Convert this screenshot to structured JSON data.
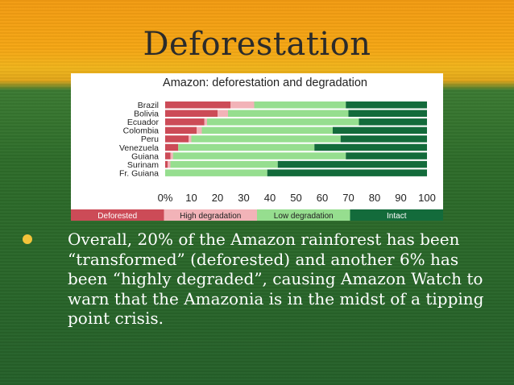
{
  "slide": {
    "title": "Deforestation",
    "bullets": [
      "Overall, 20% of the Amazon rainforest has been “transformed” (deforested) and another 6% has been “highly degraded”, causing Amazon Watch to warn that the Amazonia is in the midst of a tipping point crisis."
    ]
  },
  "chart_data": {
    "type": "bar",
    "orientation": "horizontal",
    "stacked": true,
    "title": "Amazon: deforestation and degradation",
    "categories": [
      "Brazil",
      "Bolivia",
      "Ecuador",
      "Colombia",
      "Peru",
      "Venezuela",
      "Guiana",
      "Surinam",
      "Fr. Guiana"
    ],
    "series": [
      {
        "name": "Deforested",
        "color": "#cc4b57",
        "values": [
          25,
          20,
          15,
          12,
          9,
          5,
          2,
          1,
          0
        ]
      },
      {
        "name": "High degradation",
        "color": "#f2b3b8",
        "values": [
          9,
          4,
          1,
          2,
          1,
          0,
          1,
          1,
          0
        ]
      },
      {
        "name": "Low degradation",
        "color": "#96de8f",
        "values": [
          35,
          46,
          58,
          50,
          57,
          52,
          66,
          41,
          39
        ]
      },
      {
        "name": "Intact",
        "color": "#136b3b",
        "values": [
          31,
          30,
          26,
          36,
          33,
          43,
          31,
          57,
          61
        ]
      }
    ],
    "xlim": [
      0,
      100
    ],
    "xticks": [
      "0%",
      "10",
      "20",
      "30",
      "40",
      "50",
      "60",
      "70",
      "80",
      "90",
      "100"
    ],
    "grid": false,
    "legend": "bottom"
  }
}
